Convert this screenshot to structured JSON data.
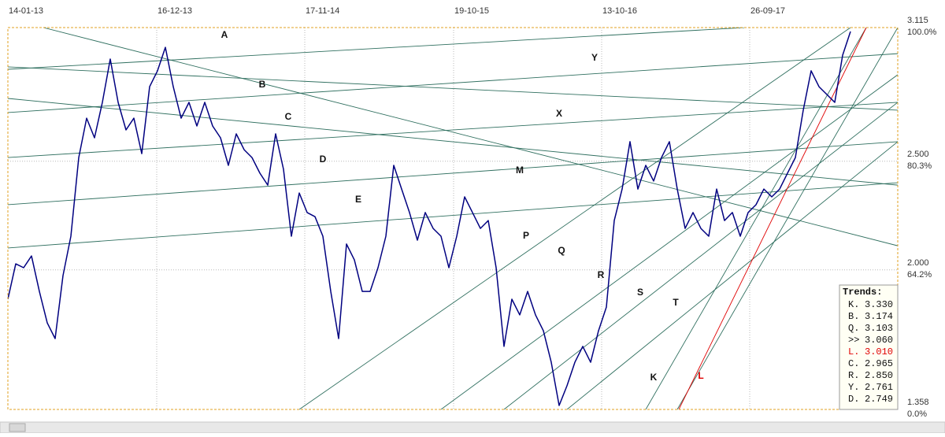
{
  "chart_data": {
    "type": "line",
    "xlim": [
      0,
      113
    ],
    "xticks": [
      {
        "value": 0,
        "label": "14-01-13"
      },
      {
        "value": 18.9,
        "label": "16-12-13"
      },
      {
        "value": 37.7,
        "label": "17-11-14"
      },
      {
        "value": 56.6,
        "label": "19-10-15"
      },
      {
        "value": 75.4,
        "label": "13-10-16"
      },
      {
        "value": 94.2,
        "label": "26-09-17"
      }
    ],
    "ylim": [
      1.358,
      3.115
    ],
    "yticks": [
      3.115,
      {
        "value": 2.5,
        "label": "2.500"
      },
      {
        "value": 2,
        "label": "2.000"
      },
      1.358
    ],
    "pct_ticks": [
      {
        "value": 100,
        "label": "100.0%"
      },
      {
        "value": 80.3,
        "label": "80.3%"
      },
      {
        "value": 64.2,
        "label": "64.2%"
      },
      {
        "value": 0,
        "label": "0.0%"
      }
    ],
    "grid": true,
    "series": [
      {
        "color": "#000080",
        "values": [
          1.865,
          2.028,
          2.01,
          2.064,
          1.901,
          1.756,
          1.684,
          1.974,
          2.155,
          2.517,
          2.698,
          2.608,
          2.771,
          2.97,
          2.771,
          2.644,
          2.698,
          2.535,
          2.843,
          2.916,
          3.024,
          2.843,
          2.698,
          2.771,
          2.662,
          2.771,
          2.662,
          2.608,
          2.481,
          2.626,
          2.553,
          2.517,
          2.445,
          2.39,
          2.626,
          2.463,
          2.155,
          2.354,
          2.264,
          2.245,
          2.155,
          1.901,
          1.684,
          2.119,
          2.046,
          1.901,
          1.901,
          2.01,
          2.155,
          2.481,
          2.372,
          2.264,
          2.137,
          2.264,
          2.191,
          2.155,
          2.01,
          2.155,
          2.336,
          2.264,
          2.191,
          2.227,
          2.01,
          1.648,
          1.865,
          1.793,
          1.901,
          1.793,
          1.72,
          1.575,
          1.376,
          1.467,
          1.575,
          1.648,
          1.575,
          1.72,
          1.829,
          2.227,
          2.372,
          2.59,
          2.372,
          2.481,
          2.409,
          2.517,
          2.59,
          2.372,
          2.191,
          2.264,
          2.191,
          2.155,
          2.372,
          2.227,
          2.264,
          2.155,
          2.264,
          2.3,
          2.372,
          2.336,
          2.372,
          2.445,
          2.517,
          2.735,
          2.916,
          2.843,
          2.807,
          2.771,
          2.988,
          3.097
        ]
      }
    ],
    "trendlines": [
      {
        "name": "A",
        "color": "#2f6f5f",
        "x": [
          0,
          93.5
        ],
        "y": [
          2.923,
          3.115
        ]
      },
      {
        "name": "B",
        "color": "#2f6f5f",
        "x": [
          0,
          113
        ],
        "y": [
          2.724,
          2.995
        ]
      },
      {
        "name": "C",
        "color": "#2f6f5f",
        "x": [
          0,
          113
        ],
        "y": [
          2.517,
          2.771
        ]
      },
      {
        "name": "D",
        "color": "#2f6f5f",
        "x": [
          0,
          113
        ],
        "y": [
          2.3,
          2.59
        ]
      },
      {
        "name": "E",
        "color": "#2f6f5f",
        "x": [
          0,
          113
        ],
        "y": [
          2.101,
          2.401
        ]
      },
      {
        "name": "M",
        "color": "#2f6f5f",
        "x": [
          4.5,
          113
        ],
        "y": [
          3.115,
          2.111
        ]
      },
      {
        "name": "X",
        "color": "#2f6f5f",
        "x": [
          0,
          113
        ],
        "y": [
          2.789,
          2.39
        ]
      },
      {
        "name": "Y",
        "color": "#2f6f5f",
        "x": [
          0,
          113
        ],
        "y": [
          2.934,
          2.735
        ]
      },
      {
        "name": "P",
        "color": "#2f6f5f",
        "x": [
          37,
          107
        ],
        "y": [
          1.358,
          3.115
        ]
      },
      {
        "name": "Q",
        "color": "#2f6f5f",
        "x": [
          55,
          113
        ],
        "y": [
          1.358,
          2.898
        ]
      },
      {
        "name": "R",
        "color": "#2f6f5f",
        "x": [
          63,
          113
        ],
        "y": [
          1.358,
          2.771
        ]
      },
      {
        "name": "S",
        "color": "#2f6f5f",
        "x": [
          71,
          113
        ],
        "y": [
          1.358,
          2.59
        ]
      },
      {
        "name": "T",
        "color": "#2f6f5f",
        "x": [
          85,
          113
        ],
        "y": [
          1.358,
          3.115
        ]
      },
      {
        "name": "K",
        "color": "#2f6f5f",
        "x": [
          81,
          109
        ],
        "y": [
          1.358,
          3.115
        ]
      },
      {
        "name": "L",
        "color": "#e00000",
        "x": [
          85.2,
          109
        ],
        "y": [
          1.358,
          3.115
        ]
      }
    ],
    "trends_box": {
      "title": "Trends:",
      "rows": [
        {
          "label": "K.",
          "value": "3.330"
        },
        {
          "label": "B.",
          "value": "3.174"
        },
        {
          "label": "Q.",
          "value": "3.103"
        },
        {
          "label": ">>",
          "value": "3.060"
        },
        {
          "label": "L.",
          "value": "3.010",
          "color": "#e00000"
        },
        {
          "label": "C.",
          "value": "2.965"
        },
        {
          "label": "R.",
          "value": "2.850"
        },
        {
          "label": "Y.",
          "value": "2.761"
        },
        {
          "label": "D.",
          "value": "2.749"
        }
      ]
    }
  }
}
